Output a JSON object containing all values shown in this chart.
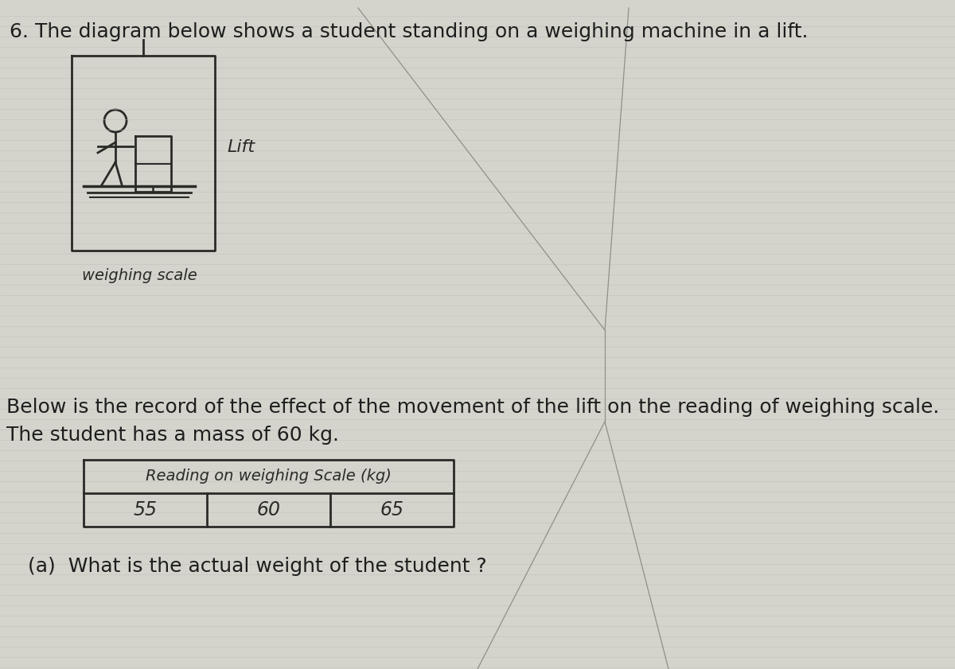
{
  "bg_color": "#d4d4cc",
  "line_color": "#c0c0b8",
  "text_color": "#1e1e1e",
  "draw_color": "#2a2a28",
  "fold_color": "#909088",
  "question_text": "6. The diagram below shows a student standing on a weighing machine in a lift.",
  "below_text_line1": "Below is the record of the effect of the movement of the lift on the reading of weighing scale.",
  "below_text_line2": "The student has a mass of 60 kg.",
  "question_a": "(a)  What is the actual weight of the student ?",
  "table_header": "Reading on weighing Scale (kg)",
  "table_values": [
    "55",
    "60",
    "65"
  ],
  "lift_label": "Lift",
  "scale_label": "weighing scale",
  "font_size_main": 18,
  "font_size_small": 13
}
